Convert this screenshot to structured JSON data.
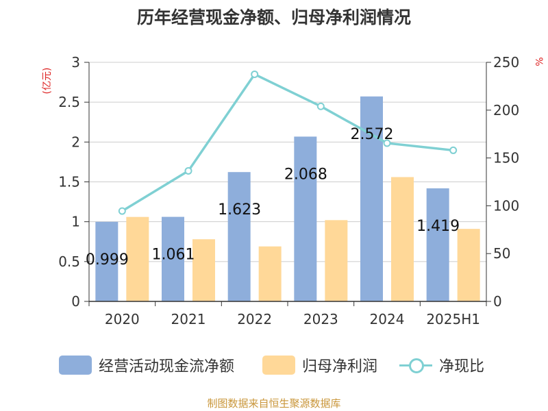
{
  "title": "历年经营现金净额、归母净利润情况",
  "footer": "制图数据来自恒生聚源数据库",
  "colors": {
    "operating": "#8eaedb",
    "profit": "#ffd898",
    "ratio": "#7fd0d3",
    "unit": "#dd2222"
  },
  "chart_data": {
    "type": "bar",
    "categories": [
      "2020",
      "2021",
      "2022",
      "2023",
      "2024",
      "2025H1"
    ],
    "ylabel_left": "(亿元)",
    "ylabel_right": "%",
    "ylim_left": [
      0,
      3
    ],
    "ylim_right": [
      0,
      250
    ],
    "yticks_left": [
      "0",
      "0.5",
      "1",
      "1.5",
      "2",
      "2.5",
      "3"
    ],
    "yticks_right": [
      "0",
      "50",
      "100",
      "150",
      "200",
      "250"
    ],
    "series": [
      {
        "name": "经营活动现金流净额",
        "type": "bar",
        "axis": "left",
        "values": [
          0.999,
          1.061,
          1.623,
          2.068,
          2.572,
          1.419
        ],
        "labels": [
          "0.999",
          "1.061",
          "1.623",
          "2.068",
          "2.572",
          "1.419"
        ]
      },
      {
        "name": "归母净利润",
        "type": "bar",
        "axis": "left",
        "values": [
          1.06,
          0.78,
          0.69,
          1.02,
          1.56,
          0.91
        ]
      },
      {
        "name": "净现比",
        "type": "line",
        "axis": "right",
        "values": [
          94.5,
          136.5,
          237.5,
          204.0,
          165.5,
          158.0
        ]
      }
    ],
    "grid": true,
    "legend": "bottom"
  }
}
